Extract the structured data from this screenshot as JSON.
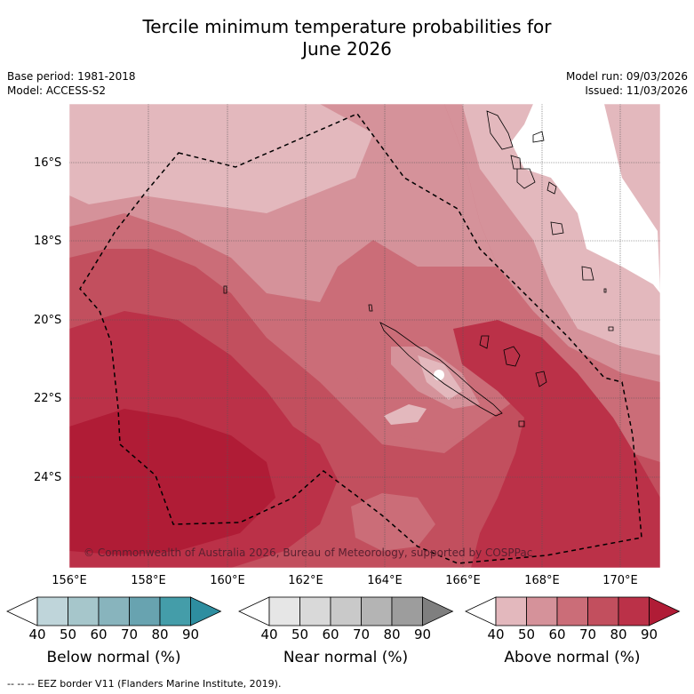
{
  "title_line1": "Tercile minimum temperature probabilities for",
  "title_line2": "June 2026",
  "base_period": "Base period: 1981-2018",
  "model": "Model: ACCESS-S2",
  "model_run": "Model run: 09/03/2026",
  "issued": "Issued: 11/03/2026",
  "copyright": "© Commonwealth of Australia 2026, Bureau of Meteorology, supported by COSPPac",
  "footer": "-- -- -- EEZ border V11 (Flanders Marine Institute, 2019).",
  "lat_labels": [
    "16°S",
    "18°S",
    "20°S",
    "22°S",
    "24°S"
  ],
  "lon_labels": [
    "156°E",
    "158°E",
    "160°E",
    "162°E",
    "164°E",
    "166°E",
    "168°E",
    "170°E"
  ],
  "colorbars": [
    {
      "label": "Below normal (%)",
      "ticks": [
        "40",
        "50",
        "60",
        "70",
        "80",
        "90"
      ],
      "colors": [
        "#ffffff",
        "#bfd5da",
        "#a6c6cb",
        "#88b4bd",
        "#68a3b0",
        "#449da9",
        "#2e8ea0"
      ]
    },
    {
      "label": "Near normal (%)",
      "ticks": [
        "40",
        "50",
        "60",
        "70",
        "80",
        "90"
      ],
      "colors": [
        "#ffffff",
        "#e6e6e6",
        "#d9d9d9",
        "#c9c9c9",
        "#b4b4b4",
        "#9d9d9d",
        "#7f7f7f"
      ]
    },
    {
      "label": "Above normal (%)",
      "ticks": [
        "40",
        "50",
        "60",
        "70",
        "80",
        "90"
      ],
      "colors": [
        "#ffffff",
        "#e3b8bd",
        "#d5929a",
        "#cb6d78",
        "#c24f5e",
        "#bb3148",
        "#b01c36"
      ]
    }
  ]
}
